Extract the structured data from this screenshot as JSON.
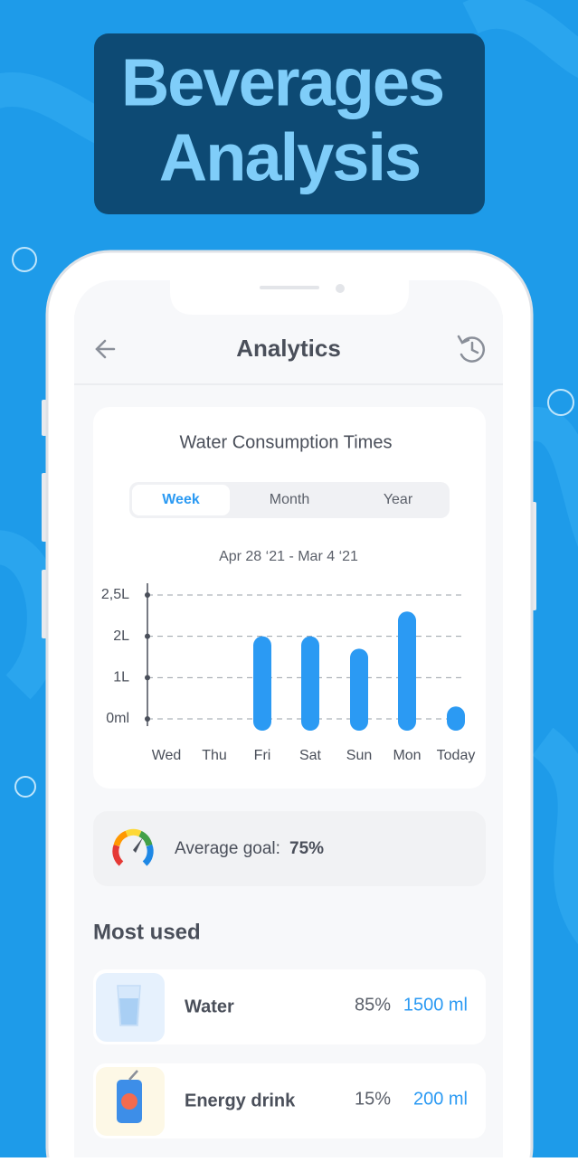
{
  "banner": {
    "lines": [
      "Beverages",
      "Analysis"
    ]
  },
  "screen_title": "Analytics",
  "chart_data": {
    "type": "bar",
    "title": "Water Consumption Times",
    "tabs": [
      "Week",
      "Month",
      "Year"
    ],
    "subtitle": "Apr 28 ‘21 - Mar 4 ‘21",
    "categories": [
      "Wed",
      "Thu",
      "Fri",
      "Sat",
      "Sun",
      "Mon",
      "Today"
    ],
    "values": [
      null,
      null,
      2,
      2,
      1.7,
      2.3,
      0.3
    ],
    "color": "#2b9af3",
    "ylim": [
      0,
      2.5
    ],
    "yticks": [
      {
        "value": 0,
        "label": "0ml"
      },
      {
        "value": 1,
        "label": "1L"
      },
      {
        "value": 2,
        "label": "2L"
      },
      {
        "value": 2.5,
        "label": "2,5L"
      }
    ],
    "grid": true
  },
  "average_goal": {
    "label": "Average goal:",
    "value": "75%"
  },
  "most_used": {
    "title": "Most used",
    "items": [
      {
        "name": "Water",
        "percent": "85%",
        "amount": "1500 ml"
      },
      {
        "name": "Energy drink",
        "percent": "15%",
        "amount": "200 ml"
      }
    ]
  }
}
